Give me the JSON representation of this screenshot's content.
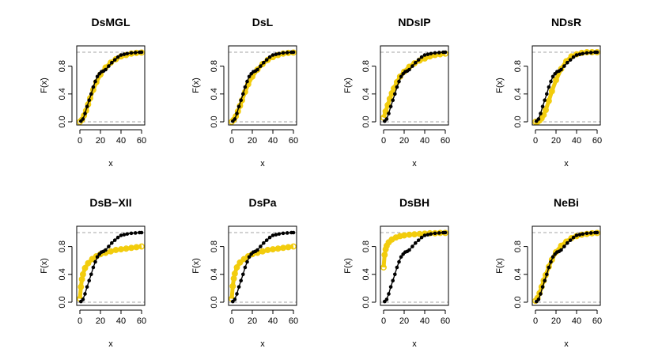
{
  "figure": {
    "xlabel": "x",
    "ylabel": "F(x)"
  },
  "chart_data": {
    "type": "scatter",
    "layout": "2x4 grid of empirical CDF panels",
    "xlim": [
      0,
      60
    ],
    "ylim": [
      0,
      1
    ],
    "xticks": [
      "0",
      "20",
      "40",
      "60"
    ],
    "yticks": [
      "0.0",
      "0.4",
      "0.8"
    ],
    "xlabel": "x",
    "ylabel": "F(x)",
    "colors": {
      "fitted": "#F2CC0C",
      "empirical": "#000000",
      "reference": "#888888"
    },
    "empirical_series": {
      "name": "empirical",
      "x": [
        1,
        3,
        5,
        7,
        9,
        11,
        13,
        15,
        17,
        19,
        21,
        23,
        25,
        28,
        31,
        34,
        37,
        40,
        43,
        46,
        50,
        54,
        58,
        60
      ],
      "y": [
        0.01,
        0.04,
        0.12,
        0.22,
        0.31,
        0.4,
        0.5,
        0.58,
        0.65,
        0.69,
        0.72,
        0.73,
        0.75,
        0.8,
        0.85,
        0.89,
        0.93,
        0.96,
        0.97,
        0.98,
        0.99,
        0.995,
        1.0,
        1.0
      ]
    },
    "panels": [
      {
        "title": "DsMGL",
        "fitted": {
          "x": [
            0,
            2,
            4,
            6,
            8,
            10,
            13,
            16,
            20,
            25,
            30,
            35,
            40,
            45,
            50,
            55,
            60
          ],
          "y": [
            0.0,
            0.03,
            0.09,
            0.16,
            0.25,
            0.34,
            0.46,
            0.57,
            0.68,
            0.78,
            0.85,
            0.9,
            0.94,
            0.96,
            0.98,
            0.99,
            0.995
          ]
        }
      },
      {
        "title": "DsL",
        "fitted": {
          "x": [
            0,
            2,
            4,
            6,
            8,
            10,
            13,
            16,
            20,
            25,
            30,
            35,
            40,
            45,
            50,
            55,
            60
          ],
          "y": [
            0.0,
            0.03,
            0.08,
            0.15,
            0.23,
            0.31,
            0.43,
            0.54,
            0.65,
            0.75,
            0.83,
            0.89,
            0.93,
            0.96,
            0.98,
            0.99,
            0.995
          ]
        }
      },
      {
        "title": "NDsIP",
        "fitted": {
          "x": [
            0,
            2,
            4,
            6,
            8,
            10,
            13,
            16,
            20,
            25,
            30,
            35,
            40,
            45,
            50,
            55,
            60
          ],
          "y": [
            0.06,
            0.15,
            0.24,
            0.33,
            0.41,
            0.48,
            0.57,
            0.65,
            0.72,
            0.79,
            0.84,
            0.88,
            0.91,
            0.94,
            0.96,
            0.97,
            0.98
          ]
        }
      },
      {
        "title": "NDsR",
        "fitted": {
          "x": [
            0,
            2,
            4,
            6,
            8,
            10,
            13,
            16,
            20,
            25,
            30,
            35,
            40,
            45,
            50,
            55,
            60
          ],
          "y": [
            0.0,
            0.0,
            0.02,
            0.05,
            0.1,
            0.17,
            0.3,
            0.44,
            0.6,
            0.76,
            0.87,
            0.94,
            0.97,
            0.99,
            1.0,
            1.0,
            1.0
          ]
        }
      },
      {
        "title": "DsB−XII",
        "fitted": {
          "x": [
            0,
            1,
            2,
            3,
            5,
            8,
            12,
            16,
            20,
            25,
            30,
            35,
            40,
            45,
            50,
            55,
            60
          ],
          "y": [
            0.05,
            0.22,
            0.33,
            0.4,
            0.49,
            0.56,
            0.62,
            0.66,
            0.69,
            0.71,
            0.73,
            0.75,
            0.76,
            0.77,
            0.78,
            0.79,
            0.8
          ]
        }
      },
      {
        "title": "DsPa",
        "fitted": {
          "x": [
            0,
            1,
            2,
            3,
            5,
            8,
            12,
            16,
            20,
            25,
            30,
            35,
            40,
            45,
            50,
            55,
            60
          ],
          "y": [
            0.05,
            0.23,
            0.34,
            0.41,
            0.5,
            0.57,
            0.62,
            0.66,
            0.69,
            0.71,
            0.73,
            0.75,
            0.76,
            0.77,
            0.78,
            0.79,
            0.8
          ]
        }
      },
      {
        "title": "DsBH",
        "fitted": {
          "x": [
            0,
            1,
            2,
            3,
            5,
            8,
            12,
            16,
            20,
            25,
            30,
            35,
            40,
            45,
            50,
            55,
            60
          ],
          "y": [
            0.5,
            0.68,
            0.76,
            0.81,
            0.86,
            0.9,
            0.93,
            0.95,
            0.96,
            0.97,
            0.975,
            0.98,
            0.985,
            0.99,
            0.99,
            0.995,
            0.995
          ]
        }
      },
      {
        "title": "NeBi",
        "fitted": {
          "x": [
            0,
            2,
            4,
            6,
            8,
            10,
            13,
            16,
            20,
            25,
            30,
            35,
            40,
            45,
            50,
            55,
            60
          ],
          "y": [
            0.02,
            0.06,
            0.13,
            0.22,
            0.31,
            0.39,
            0.51,
            0.61,
            0.72,
            0.81,
            0.87,
            0.92,
            0.95,
            0.97,
            0.98,
            0.99,
            0.995
          ]
        }
      }
    ]
  }
}
